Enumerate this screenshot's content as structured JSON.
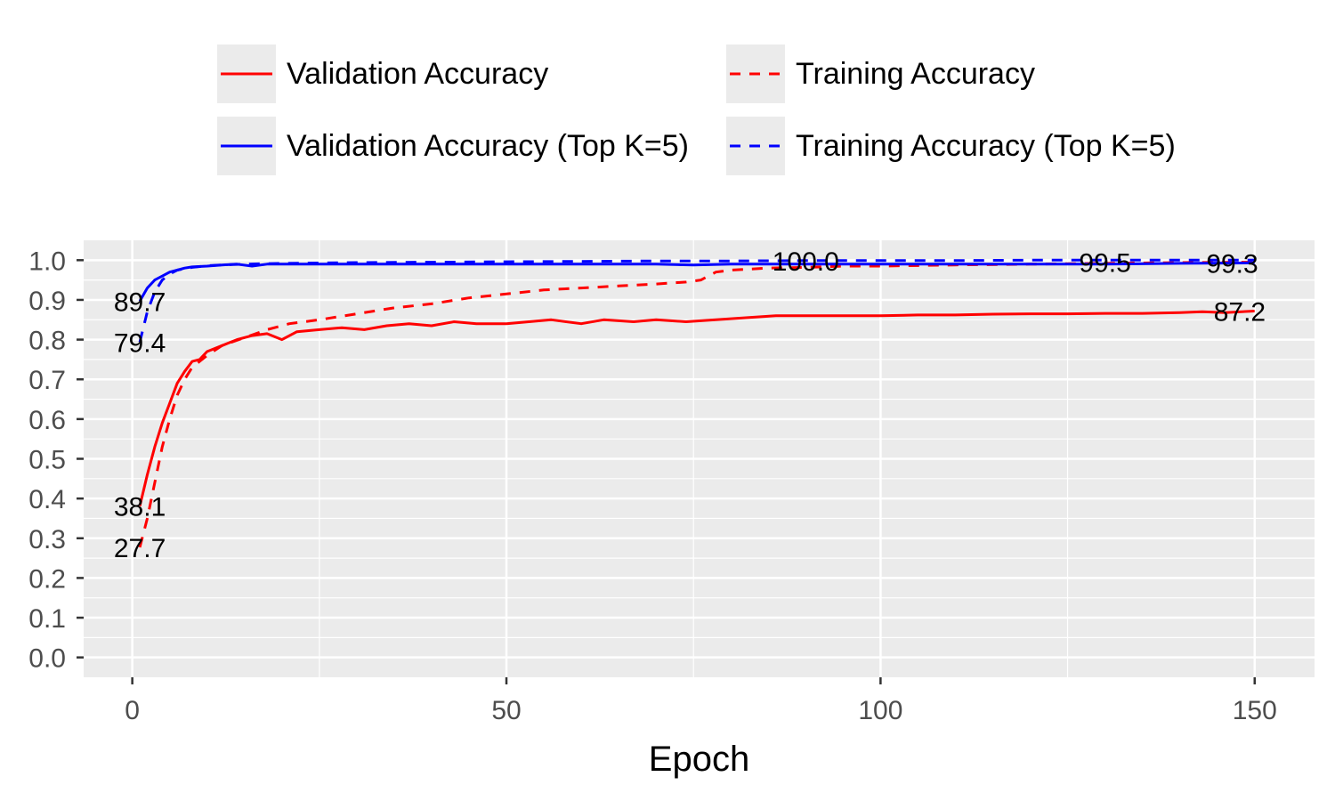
{
  "chart_data": {
    "type": "line",
    "title": "",
    "xlabel": "Epoch",
    "ylabel": "",
    "xlim": [
      -6.5,
      158
    ],
    "ylim": [
      -0.05,
      1.05
    ],
    "x_ticks": [
      0,
      50,
      100,
      150
    ],
    "y_ticks": [
      0.0,
      0.1,
      0.2,
      0.3,
      0.4,
      0.5,
      0.6,
      0.7,
      0.8,
      0.9,
      1.0
    ],
    "grid": true,
    "legend_position": "top",
    "series": [
      {
        "name": "Validation Accuracy",
        "color": "#ff0000",
        "dash": "solid",
        "points": [
          [
            1,
            0.381
          ],
          [
            2,
            0.46
          ],
          [
            3,
            0.53
          ],
          [
            4,
            0.59
          ],
          [
            5,
            0.64
          ],
          [
            6,
            0.69
          ],
          [
            7,
            0.72
          ],
          [
            8,
            0.745
          ],
          [
            9,
            0.75
          ],
          [
            10,
            0.77
          ],
          [
            12,
            0.785
          ],
          [
            14,
            0.8
          ],
          [
            16,
            0.81
          ],
          [
            18,
            0.815
          ],
          [
            20,
            0.8
          ],
          [
            22,
            0.82
          ],
          [
            25,
            0.825
          ],
          [
            28,
            0.83
          ],
          [
            31,
            0.825
          ],
          [
            34,
            0.835
          ],
          [
            37,
            0.84
          ],
          [
            40,
            0.835
          ],
          [
            43,
            0.845
          ],
          [
            46,
            0.84
          ],
          [
            50,
            0.84
          ],
          [
            53,
            0.845
          ],
          [
            56,
            0.85
          ],
          [
            60,
            0.84
          ],
          [
            63,
            0.85
          ],
          [
            67,
            0.845
          ],
          [
            70,
            0.85
          ],
          [
            74,
            0.845
          ],
          [
            78,
            0.85
          ],
          [
            82,
            0.855
          ],
          [
            86,
            0.86
          ],
          [
            90,
            0.86
          ],
          [
            95,
            0.86
          ],
          [
            100,
            0.86
          ],
          [
            105,
            0.862
          ],
          [
            110,
            0.862
          ],
          [
            115,
            0.864
          ],
          [
            120,
            0.865
          ],
          [
            125,
            0.865
          ],
          [
            130,
            0.866
          ],
          [
            135,
            0.866
          ],
          [
            140,
            0.868
          ],
          [
            143,
            0.87
          ],
          [
            146,
            0.868
          ],
          [
            150,
            0.872
          ]
        ]
      },
      {
        "name": "Training Accuracy",
        "color": "#ff0000",
        "dash": "dashed",
        "points": [
          [
            1,
            0.277
          ],
          [
            2,
            0.35
          ],
          [
            3,
            0.44
          ],
          [
            4,
            0.53
          ],
          [
            5,
            0.6
          ],
          [
            6,
            0.66
          ],
          [
            7,
            0.7
          ],
          [
            8,
            0.73
          ],
          [
            10,
            0.76
          ],
          [
            12,
            0.785
          ],
          [
            15,
            0.805
          ],
          [
            18,
            0.825
          ],
          [
            21,
            0.84
          ],
          [
            25,
            0.85
          ],
          [
            30,
            0.865
          ],
          [
            35,
            0.88
          ],
          [
            40,
            0.89
          ],
          [
            45,
            0.905
          ],
          [
            50,
            0.915
          ],
          [
            55,
            0.925
          ],
          [
            60,
            0.93
          ],
          [
            65,
            0.935
          ],
          [
            70,
            0.94
          ],
          [
            74,
            0.945
          ],
          [
            76,
            0.95
          ],
          [
            78,
            0.97
          ],
          [
            80,
            0.975
          ],
          [
            85,
            0.98
          ],
          [
            90,
            0.982
          ],
          [
            95,
            0.985
          ],
          [
            100,
            0.985
          ],
          [
            110,
            0.988
          ],
          [
            120,
            0.99
          ],
          [
            130,
            0.992
          ],
          [
            140,
            0.994
          ],
          [
            150,
            0.995
          ]
        ]
      },
      {
        "name": "Validation Accuracy (Top K=5)",
        "color": "#0000ff",
        "dash": "solid",
        "points": [
          [
            1,
            0.897
          ],
          [
            2,
            0.93
          ],
          [
            3,
            0.95
          ],
          [
            4,
            0.96
          ],
          [
            5,
            0.97
          ],
          [
            6,
            0.975
          ],
          [
            7,
            0.98
          ],
          [
            8,
            0.983
          ],
          [
            10,
            0.985
          ],
          [
            12,
            0.988
          ],
          [
            14,
            0.99
          ],
          [
            16,
            0.985
          ],
          [
            18,
            0.99
          ],
          [
            20,
            0.99
          ],
          [
            25,
            0.99
          ],
          [
            30,
            0.99
          ],
          [
            40,
            0.99
          ],
          [
            50,
            0.99
          ],
          [
            60,
            0.99
          ],
          [
            70,
            0.99
          ],
          [
            75,
            0.988
          ],
          [
            80,
            0.99
          ],
          [
            90,
            0.99
          ],
          [
            100,
            0.99
          ],
          [
            110,
            0.99
          ],
          [
            120,
            0.99
          ],
          [
            130,
            0.99
          ],
          [
            140,
            0.992
          ],
          [
            150,
            0.993
          ]
        ]
      },
      {
        "name": "Training Accuracy (Top K=5)",
        "color": "#0000ff",
        "dash": "dashed",
        "points": [
          [
            1,
            0.794
          ],
          [
            2,
            0.87
          ],
          [
            3,
            0.92
          ],
          [
            4,
            0.95
          ],
          [
            5,
            0.965
          ],
          [
            6,
            0.975
          ],
          [
            8,
            0.982
          ],
          [
            10,
            0.986
          ],
          [
            12,
            0.988
          ],
          [
            15,
            0.99
          ],
          [
            20,
            0.992
          ],
          [
            30,
            0.994
          ],
          [
            40,
            0.995
          ],
          [
            50,
            0.996
          ],
          [
            60,
            0.997
          ],
          [
            70,
            0.998
          ],
          [
            80,
            0.998
          ],
          [
            90,
            0.999
          ],
          [
            100,
            0.999
          ],
          [
            110,
            0.999
          ],
          [
            120,
            1.0
          ],
          [
            130,
            1.0
          ],
          [
            140,
            1.0
          ],
          [
            150,
            1.0
          ]
        ]
      }
    ],
    "annotations": [
      {
        "text": "89.7",
        "x": 1,
        "y": 0.897
      },
      {
        "text": "79.4",
        "x": 1,
        "y": 0.794
      },
      {
        "text": "38.1",
        "x": 1,
        "y": 0.381
      },
      {
        "text": "27.7",
        "x": 1,
        "y": 0.277
      },
      {
        "text": "100.0",
        "x": 90,
        "y": 0.999
      },
      {
        "text": "99.5",
        "x": 130,
        "y": 0.995
      },
      {
        "text": "99.3",
        "x": 147,
        "y": 0.993
      },
      {
        "text": "87.2",
        "x": 148,
        "y": 0.872
      }
    ]
  },
  "legend": {
    "items": [
      {
        "label": "Validation Accuracy",
        "color": "#ff0000",
        "dash": "solid"
      },
      {
        "label": "Training Accuracy",
        "color": "#ff0000",
        "dash": "dashed"
      },
      {
        "label": "Validation Accuracy (Top K=5)",
        "color": "#0000ff",
        "dash": "solid"
      },
      {
        "label": "Training Accuracy (Top K=5)",
        "color": "#0000ff",
        "dash": "dashed"
      }
    ]
  }
}
